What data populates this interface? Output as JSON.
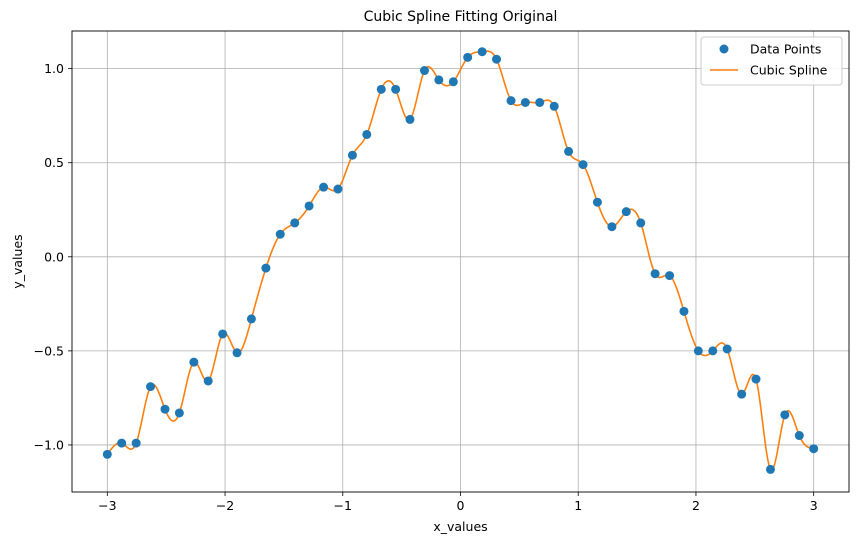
{
  "chart_data": {
    "type": "line",
    "title": "Cubic Spline Fitting Original",
    "xlabel": "x_values",
    "ylabel": "y_values",
    "xlim": [
      -3.3,
      3.3
    ],
    "ylim": [
      -1.25,
      1.2
    ],
    "xticks": [
      -3,
      -2,
      -1,
      0,
      1,
      2,
      3
    ],
    "yticks": [
      -1.0,
      -0.5,
      0.0,
      0.5,
      1.0
    ],
    "xtick_labels": [
      "−3",
      "−2",
      "−1",
      "0",
      "1",
      "2",
      "3"
    ],
    "ytick_labels": [
      "−1.0",
      "−0.5",
      "0.0",
      "0.5",
      "1.0"
    ],
    "grid": true,
    "legend_position": "top-right",
    "series": [
      {
        "name": "Data Points",
        "kind": "scatter",
        "color": "#1f77b4",
        "x": [
          -3.0,
          -2.878,
          -2.755,
          -2.633,
          -2.51,
          -2.388,
          -2.265,
          -2.143,
          -2.02,
          -1.898,
          -1.776,
          -1.653,
          -1.531,
          -1.408,
          -1.286,
          -1.163,
          -1.041,
          -0.918,
          -0.796,
          -0.673,
          -0.551,
          -0.429,
          -0.306,
          -0.184,
          -0.061,
          0.061,
          0.184,
          0.306,
          0.429,
          0.551,
          0.673,
          0.796,
          0.918,
          1.041,
          1.163,
          1.286,
          1.408,
          1.531,
          1.653,
          1.776,
          1.898,
          2.02,
          2.143,
          2.265,
          2.388,
          2.51,
          2.633,
          2.755,
          2.878,
          3.0
        ],
        "y": [
          -1.05,
          -0.99,
          -0.99,
          -0.69,
          -0.81,
          -0.83,
          -0.56,
          -0.66,
          -0.41,
          -0.51,
          -0.33,
          -0.06,
          0.12,
          0.18,
          0.27,
          0.37,
          0.36,
          0.54,
          0.65,
          0.89,
          0.89,
          0.73,
          0.99,
          0.94,
          0.93,
          1.06,
          1.09,
          1.05,
          0.83,
          0.82,
          0.82,
          0.8,
          0.56,
          0.49,
          0.29,
          0.16,
          0.24,
          0.18,
          -0.09,
          -0.1,
          -0.29,
          -0.5,
          -0.5,
          -0.49,
          -0.73,
          -0.65,
          -1.13,
          -0.84,
          -0.95,
          -1.02
        ]
      },
      {
        "name": "Cubic Spline",
        "kind": "line",
        "color": "#ff7f0e",
        "method": "natural cubic spline through Data Points"
      }
    ]
  }
}
